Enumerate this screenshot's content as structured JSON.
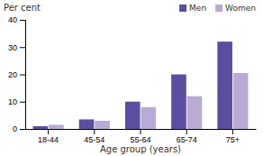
{
  "chart_data": {
    "type": "bar",
    "xlabel": "Age group (years)",
    "ylabel": "Per cent",
    "categories": [
      "18-44",
      "45-54",
      "55-64",
      "65-74",
      "75+"
    ],
    "series": [
      {
        "name": "Men",
        "color": "#5b4ea0",
        "values": [
          1,
          3.5,
          10,
          20,
          32
        ]
      },
      {
        "name": "Women",
        "color": "#b8aad4",
        "values": [
          1.5,
          3,
          8,
          12,
          20.5
        ]
      }
    ],
    "ylim": [
      0,
      40
    ],
    "yticks": [
      0,
      10,
      20,
      30,
      40
    ],
    "legend": "upper right",
    "grid": false
  }
}
